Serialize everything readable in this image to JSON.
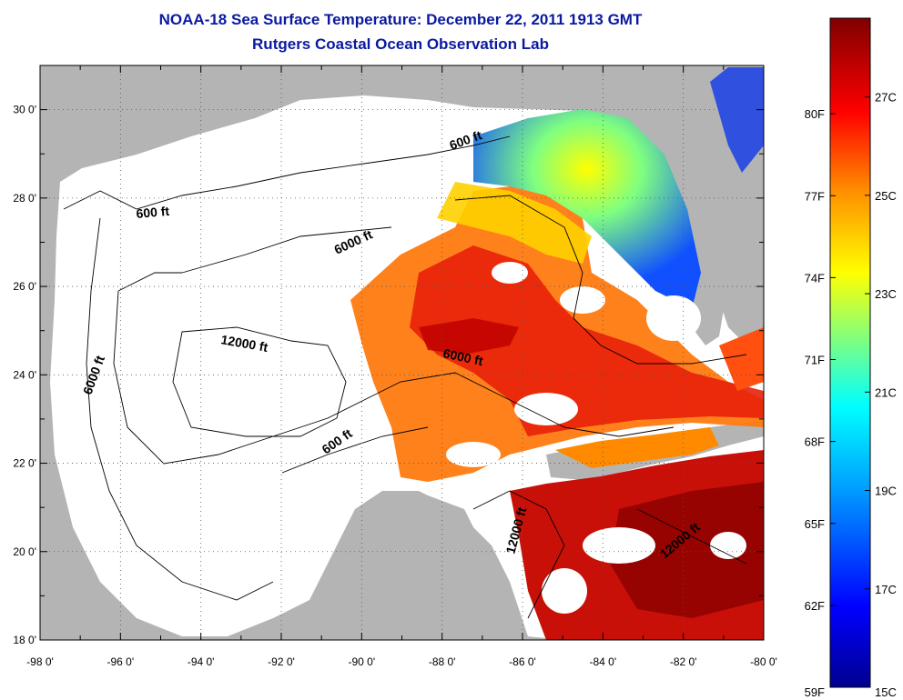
{
  "title": "NOAA-18 Sea Surface Temperature:  December 22, 2011 1913 GMT",
  "subtitle": "Rutgers Coastal Ocean Observation Lab",
  "map": {
    "lon_range": [
      -98,
      -80
    ],
    "lat_range": [
      18,
      31
    ],
    "x_ticks": [
      "-98 0'",
      "-96 0'",
      "-94 0'",
      "-92 0'",
      "-90 0'",
      "-88 0'",
      "-86 0'",
      "-84 0'",
      "-82 0'",
      "-80 0'"
    ],
    "y_ticks": [
      "18 0'",
      "20 0'",
      "22 0'",
      "24 0'",
      "26 0'",
      "28 0'",
      "30 0'"
    ],
    "land_color": "#b4b4b4",
    "no_data_color": "#ffffff",
    "grid": "dotted",
    "contours": [
      "600 ft",
      "600 ft",
      "6000 ft",
      "6000 ft",
      "12000 ft",
      "6000 ft",
      "600 ft",
      "12000 ft",
      "12000 ft"
    ]
  },
  "colorbar": {
    "min_f": "59F",
    "min_c": "15C",
    "fahrenheit": [
      "80F",
      "77F",
      "74F",
      "71F",
      "68F",
      "65F",
      "62F"
    ],
    "celsius": [
      "27C",
      "25C",
      "23C",
      "21C",
      "19C",
      "17C"
    ],
    "colors": [
      "#00008f",
      "#0000ff",
      "#00a0ff",
      "#00ffff",
      "#80ff80",
      "#ffff00",
      "#ff9000",
      "#ff0000",
      "#800000"
    ]
  }
}
